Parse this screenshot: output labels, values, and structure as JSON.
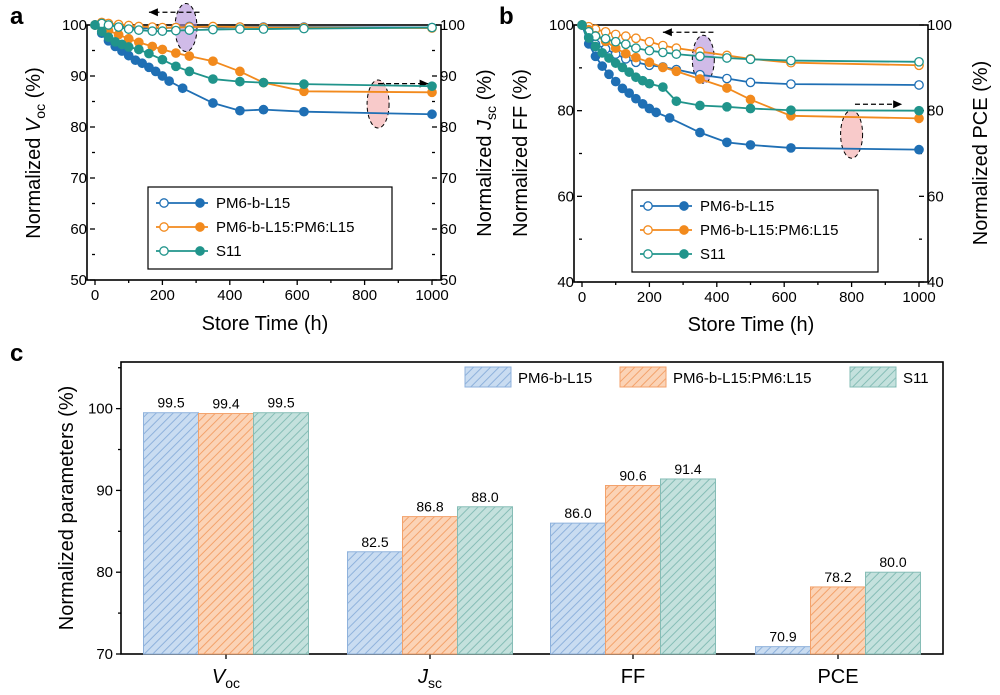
{
  "chart_data": [
    {
      "panel": "a",
      "type": "line",
      "xlabel": "Store Time (h)",
      "ylabel_left": "Normalized V_oc (%)",
      "ylabel_right": "Normalized J_sc (%)",
      "ylim_left": [
        50,
        100
      ],
      "ylim_right": [
        50,
        100
      ],
      "xlim": [
        0,
        1000
      ],
      "xticks": [
        0,
        200,
        400,
        600,
        800,
        1000
      ],
      "yticks": [
        50,
        60,
        70,
        80,
        90,
        100
      ],
      "legend_position": "bottom-center",
      "series": [
        {
          "name": "PM6-b-L15",
          "metric": "Voc",
          "axis": "left",
          "marker": "open",
          "color": "#1f6fb4",
          "x": [
            0,
            20,
            40,
            70,
            100,
            130,
            170,
            200,
            240,
            280,
            350,
            430,
            500,
            620,
            1000
          ],
          "y": [
            100,
            100.3,
            100.1,
            100,
            99.6,
            99.3,
            99.4,
            99.4,
            99.5,
            99.7,
            99.5,
            99.6,
            99.6,
            99.6,
            99.5
          ]
        },
        {
          "name": "PM6-b-L15",
          "metric": "Jsc",
          "axis": "right",
          "marker": "filled",
          "color": "#1f6fb4",
          "x": [
            0,
            20,
            40,
            60,
            80,
            100,
            120,
            140,
            160,
            180,
            200,
            220,
            260,
            350,
            430,
            500,
            620,
            1000
          ],
          "y": [
            100,
            98.4,
            96.9,
            95.8,
            94.9,
            94,
            93.1,
            92.5,
            91.7,
            90.9,
            90,
            89,
            87.6,
            84.7,
            83.2,
            83.4,
            83,
            82.5
          ]
        },
        {
          "name": "PM6-b-L15:PM6:L15",
          "metric": "Voc",
          "axis": "left",
          "marker": "open",
          "color": "#f28a1d",
          "x": [
            0,
            20,
            40,
            70,
            100,
            130,
            170,
            200,
            240,
            280,
            350,
            430,
            500,
            620,
            1000
          ],
          "y": [
            100,
            100.5,
            100.3,
            100.1,
            99.9,
            99.7,
            99.6,
            99.5,
            99.5,
            99.6,
            99.7,
            99.6,
            99.5,
            99.5,
            99.4
          ]
        },
        {
          "name": "PM6-b-L15:PM6:L15",
          "metric": "Jsc",
          "axis": "right",
          "marker": "filled",
          "color": "#f28a1d",
          "x": [
            0,
            20,
            40,
            70,
            100,
            130,
            170,
            200,
            240,
            280,
            350,
            430,
            500,
            620,
            1000
          ],
          "y": [
            100,
            99.5,
            98.9,
            98.1,
            97.3,
            96.6,
            95.8,
            95.2,
            94.5,
            93.9,
            92.9,
            90.9,
            88.7,
            87,
            86.8
          ]
        },
        {
          "name": "S11",
          "metric": "Voc",
          "axis": "left",
          "marker": "open",
          "color": "#20948b",
          "x": [
            0,
            20,
            40,
            70,
            100,
            130,
            170,
            200,
            240,
            280,
            350,
            430,
            500,
            620,
            1000
          ],
          "y": [
            100,
            100.3,
            100,
            99.6,
            99.2,
            99,
            98.8,
            98.8,
            98.9,
            99,
            99.1,
            99.2,
            99.2,
            99.3,
            99.5
          ]
        },
        {
          "name": "S11",
          "metric": "Jsc",
          "axis": "right",
          "marker": "filled",
          "color": "#20948b",
          "x": [
            0,
            20,
            40,
            60,
            80,
            100,
            130,
            160,
            200,
            240,
            280,
            350,
            430,
            500,
            620,
            1000
          ],
          "y": [
            100,
            98.7,
            97.6,
            96.7,
            96.2,
            95.7,
            95.2,
            94.4,
            93.2,
            91.9,
            90.9,
            89.4,
            88.9,
            88.7,
            88.4,
            88
          ]
        }
      ],
      "annotations": [
        {
          "type": "ellipse",
          "meaning": "Voc curves point to left axis",
          "x": 270,
          "y": 99.5,
          "color": "#b08ed8"
        },
        {
          "type": "arrow",
          "direction": "left",
          "x_from": 310,
          "x_to": 160,
          "y": 102.5
        },
        {
          "type": "ellipse",
          "meaning": "Jsc curves point to right axis",
          "x": 840,
          "y": 84.5,
          "color": "#f4a7a6"
        },
        {
          "type": "arrow",
          "direction": "right",
          "x_from": 840,
          "x_to": 990,
          "y": 88.5
        }
      ]
    },
    {
      "panel": "b",
      "type": "line",
      "xlabel": "Store Time (h)",
      "ylabel_left": "Normalized FF (%)",
      "ylabel_right": "Normalized PCE (%)",
      "ylim_left": [
        40,
        100
      ],
      "ylim_right": [
        40,
        100
      ],
      "xlim": [
        0,
        1000
      ],
      "xticks": [
        0,
        200,
        400,
        600,
        800,
        1000
      ],
      "yticks": [
        40,
        60,
        80,
        100
      ],
      "legend_position": "bottom-center",
      "series": [
        {
          "name": "PM6-b-L15",
          "metric": "FF",
          "axis": "left",
          "marker": "open",
          "color": "#1f6fb4",
          "x": [
            0,
            20,
            40,
            70,
            100,
            130,
            160,
            200,
            240,
            280,
            350,
            430,
            500,
            620,
            1000
          ],
          "y": [
            100,
            97.2,
            95.5,
            94.4,
            93.2,
            92.1,
            91.3,
            90.6,
            90.2,
            89.6,
            88.4,
            87.5,
            86.6,
            86.2,
            86
          ]
        },
        {
          "name": "PM6-b-L15",
          "metric": "PCE",
          "axis": "right",
          "marker": "filled",
          "color": "#1f6fb4",
          "x": [
            0,
            20,
            40,
            60,
            80,
            100,
            120,
            140,
            160,
            180,
            200,
            220,
            260,
            350,
            430,
            500,
            620,
            1000
          ],
          "y": [
            100,
            95.6,
            92.7,
            90.4,
            88.5,
            86.8,
            85.2,
            84.1,
            82.8,
            81.6,
            80.5,
            79.6,
            78.3,
            74.9,
            72.6,
            72,
            71.3,
            70.9
          ]
        },
        {
          "name": "PM6-b-L15:PM6:L15",
          "metric": "FF",
          "axis": "left",
          "marker": "open",
          "color": "#f28a1d",
          "x": [
            0,
            20,
            40,
            70,
            100,
            130,
            160,
            200,
            240,
            280,
            350,
            430,
            500,
            620,
            1000
          ],
          "y": [
            100,
            99.6,
            99,
            98.4,
            97.8,
            97.4,
            96.9,
            96.1,
            95.2,
            94.6,
            93.8,
            92.9,
            92.1,
            91.2,
            90.6
          ]
        },
        {
          "name": "PM6-b-L15:PM6:L15",
          "metric": "PCE",
          "axis": "right",
          "marker": "filled",
          "color": "#f28a1d",
          "x": [
            0,
            20,
            40,
            70,
            100,
            130,
            160,
            200,
            240,
            280,
            350,
            430,
            500,
            620,
            1000
          ],
          "y": [
            100,
            98.9,
            97.5,
            96.2,
            94.6,
            93.3,
            92.4,
            91.3,
            90.1,
            89.2,
            87.4,
            85.3,
            82.6,
            78.8,
            78.2
          ]
        },
        {
          "name": "S11",
          "metric": "FF",
          "axis": "left",
          "marker": "open",
          "color": "#20948b",
          "x": [
            0,
            20,
            40,
            70,
            100,
            130,
            160,
            200,
            240,
            280,
            350,
            430,
            500,
            620,
            1000
          ],
          "y": [
            100,
            98.4,
            97.4,
            96.8,
            96.1,
            95.5,
            94.6,
            94,
            93.6,
            93.2,
            92.7,
            92.3,
            92,
            91.7,
            91.4
          ]
        },
        {
          "name": "S11",
          "metric": "PCE",
          "axis": "right",
          "marker": "filled",
          "color": "#20948b",
          "x": [
            0,
            20,
            40,
            60,
            80,
            100,
            120,
            140,
            160,
            180,
            200,
            240,
            280,
            350,
            430,
            500,
            620,
            1000
          ],
          "y": [
            100,
            97,
            95,
            93.5,
            92.3,
            91.1,
            90.1,
            89,
            87.8,
            87,
            86.3,
            85.5,
            82.2,
            81.2,
            80.9,
            80.5,
            80.1,
            80
          ]
        }
      ],
      "annotations": [
        {
          "type": "ellipse",
          "meaning": "FF curves point to left axis",
          "x": 360,
          "y": 92,
          "color": "#b08ed8"
        },
        {
          "type": "arrow",
          "direction": "left",
          "x_from": 390,
          "x_to": 240,
          "y": 98.3
        },
        {
          "type": "ellipse",
          "meaning": "PCE curves point to right axis",
          "x": 800,
          "y": 74.5,
          "color": "#f4a7a6"
        },
        {
          "type": "arrow",
          "direction": "right",
          "x_from": 810,
          "x_to": 950,
          "y": 81.5
        }
      ]
    },
    {
      "panel": "c",
      "type": "bar",
      "ylabel": "Normalized parameters (%)",
      "ylim": [
        70,
        105
      ],
      "yticks": [
        70,
        80,
        90,
        100
      ],
      "legend_position": "top-right",
      "categories": [
        "Voc",
        "Jsc",
        "FF",
        "PCE"
      ],
      "series": [
        {
          "name": "PM6-b-L15",
          "color": "#a8c4e6",
          "values": [
            99.5,
            82.5,
            86.0,
            70.9
          ],
          "labels": [
            "99.5",
            "82.5",
            "86.0",
            "70.9"
          ]
        },
        {
          "name": "PM6-b-L15:PM6:L15",
          "color": "#f7b88a",
          "values": [
            99.4,
            86.8,
            90.6,
            78.2
          ],
          "labels": [
            "99.4",
            "86.8",
            "90.6",
            "78.2"
          ]
        },
        {
          "name": "S11",
          "color": "#9ccac4",
          "values": [
            99.5,
            88.0,
            91.4,
            80.0
          ],
          "labels": [
            "99.5",
            "88.0",
            "91.4",
            "80.0"
          ]
        }
      ]
    }
  ]
}
